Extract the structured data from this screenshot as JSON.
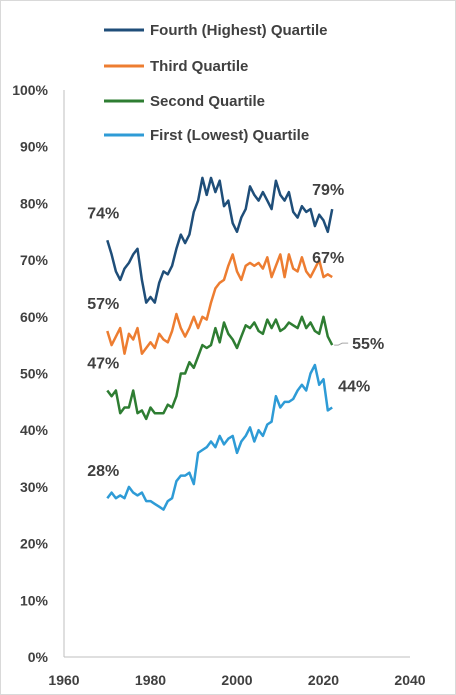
{
  "chart_data": {
    "type": "line",
    "title": "",
    "xlabel": "",
    "ylabel": "",
    "xlim": [
      1960,
      2040
    ],
    "ylim": [
      0,
      1.0
    ],
    "x_ticks": [
      "1960",
      "1980",
      "2000",
      "2020",
      "2040"
    ],
    "y_ticks": [
      "0%",
      "10%",
      "20%",
      "30%",
      "40%",
      "50%",
      "60%",
      "70%",
      "80%",
      "90%",
      "100%"
    ],
    "grid": false,
    "legend_position": "top",
    "colors": {
      "fourth": "#1f4e79",
      "third": "#ed7d31",
      "second": "#2e7d32",
      "first": "#2e9bd6",
      "axis": "#bfbfbf",
      "text": "#404040"
    },
    "series": [
      {
        "name": "Fourth (Highest) Quartile",
        "color": "#1f4e79",
        "start_label": "74%",
        "end_label": "79%",
        "values": [
          [
            1970,
            0.735
          ],
          [
            1971,
            0.71
          ],
          [
            1972,
            0.68
          ],
          [
            1973,
            0.665
          ],
          [
            1974,
            0.685
          ],
          [
            1975,
            0.695
          ],
          [
            1976,
            0.71
          ],
          [
            1977,
            0.72
          ],
          [
            1978,
            0.665
          ],
          [
            1979,
            0.625
          ],
          [
            1980,
            0.635
          ],
          [
            1981,
            0.625
          ],
          [
            1982,
            0.66
          ],
          [
            1983,
            0.68
          ],
          [
            1984,
            0.675
          ],
          [
            1985,
            0.69
          ],
          [
            1986,
            0.72
          ],
          [
            1987,
            0.745
          ],
          [
            1988,
            0.73
          ],
          [
            1989,
            0.745
          ],
          [
            1990,
            0.785
          ],
          [
            1991,
            0.805
          ],
          [
            1992,
            0.845
          ],
          [
            1993,
            0.815
          ],
          [
            1994,
            0.845
          ],
          [
            1995,
            0.82
          ],
          [
            1996,
            0.84
          ],
          [
            1997,
            0.795
          ],
          [
            1998,
            0.805
          ],
          [
            1999,
            0.765
          ],
          [
            2000,
            0.75
          ],
          [
            2001,
            0.775
          ],
          [
            2002,
            0.79
          ],
          [
            2003,
            0.83
          ],
          [
            2004,
            0.815
          ],
          [
            2005,
            0.805
          ],
          [
            2006,
            0.82
          ],
          [
            2007,
            0.805
          ],
          [
            2008,
            0.79
          ],
          [
            2009,
            0.84
          ],
          [
            2010,
            0.815
          ],
          [
            2011,
            0.805
          ],
          [
            2012,
            0.82
          ],
          [
            2013,
            0.785
          ],
          [
            2014,
            0.775
          ],
          [
            2015,
            0.795
          ],
          [
            2016,
            0.785
          ],
          [
            2017,
            0.79
          ],
          [
            2018,
            0.76
          ],
          [
            2019,
            0.78
          ],
          [
            2020,
            0.77
          ],
          [
            2021,
            0.75
          ],
          [
            2022,
            0.79
          ]
        ]
      },
      {
        "name": "Third Quartile",
        "color": "#ed7d31",
        "start_label": "57%",
        "end_label": "67%",
        "values": [
          [
            1970,
            0.575
          ],
          [
            1971,
            0.55
          ],
          [
            1972,
            0.565
          ],
          [
            1973,
            0.58
          ],
          [
            1974,
            0.535
          ],
          [
            1975,
            0.57
          ],
          [
            1976,
            0.56
          ],
          [
            1977,
            0.58
          ],
          [
            1978,
            0.535
          ],
          [
            1979,
            0.545
          ],
          [
            1980,
            0.555
          ],
          [
            1981,
            0.545
          ],
          [
            1982,
            0.57
          ],
          [
            1983,
            0.56
          ],
          [
            1984,
            0.555
          ],
          [
            1985,
            0.575
          ],
          [
            1986,
            0.605
          ],
          [
            1987,
            0.58
          ],
          [
            1988,
            0.565
          ],
          [
            1989,
            0.58
          ],
          [
            1990,
            0.6
          ],
          [
            1991,
            0.58
          ],
          [
            1992,
            0.6
          ],
          [
            1993,
            0.595
          ],
          [
            1994,
            0.625
          ],
          [
            1995,
            0.65
          ],
          [
            1996,
            0.66
          ],
          [
            1997,
            0.665
          ],
          [
            1998,
            0.69
          ],
          [
            1999,
            0.71
          ],
          [
            2000,
            0.68
          ],
          [
            2001,
            0.665
          ],
          [
            2002,
            0.69
          ],
          [
            2003,
            0.695
          ],
          [
            2004,
            0.69
          ],
          [
            2005,
            0.695
          ],
          [
            2006,
            0.685
          ],
          [
            2007,
            0.705
          ],
          [
            2008,
            0.67
          ],
          [
            2009,
            0.69
          ],
          [
            2010,
            0.71
          ],
          [
            2011,
            0.67
          ],
          [
            2012,
            0.71
          ],
          [
            2013,
            0.685
          ],
          [
            2014,
            0.68
          ],
          [
            2015,
            0.705
          ],
          [
            2016,
            0.68
          ],
          [
            2017,
            0.67
          ],
          [
            2018,
            0.685
          ],
          [
            2019,
            0.7
          ],
          [
            2020,
            0.67
          ],
          [
            2021,
            0.675
          ],
          [
            2022,
            0.67
          ]
        ]
      },
      {
        "name": "Second Quartile",
        "color": "#2e7d32",
        "start_label": "47%",
        "end_label": "55%",
        "values": [
          [
            1970,
            0.47
          ],
          [
            1971,
            0.46
          ],
          [
            1972,
            0.47
          ],
          [
            1973,
            0.43
          ],
          [
            1974,
            0.44
          ],
          [
            1975,
            0.44
          ],
          [
            1976,
            0.47
          ],
          [
            1977,
            0.43
          ],
          [
            1978,
            0.435
          ],
          [
            1979,
            0.42
          ],
          [
            1980,
            0.44
          ],
          [
            1981,
            0.43
          ],
          [
            1982,
            0.43
          ],
          [
            1983,
            0.43
          ],
          [
            1984,
            0.445
          ],
          [
            1985,
            0.44
          ],
          [
            1986,
            0.46
          ],
          [
            1987,
            0.5
          ],
          [
            1988,
            0.5
          ],
          [
            1989,
            0.52
          ],
          [
            1990,
            0.51
          ],
          [
            1991,
            0.53
          ],
          [
            1992,
            0.55
          ],
          [
            1993,
            0.545
          ],
          [
            1994,
            0.55
          ],
          [
            1995,
            0.58
          ],
          [
            1996,
            0.555
          ],
          [
            1997,
            0.59
          ],
          [
            1998,
            0.57
          ],
          [
            1999,
            0.56
          ],
          [
            2000,
            0.545
          ],
          [
            2001,
            0.565
          ],
          [
            2002,
            0.585
          ],
          [
            2003,
            0.58
          ],
          [
            2004,
            0.59
          ],
          [
            2005,
            0.575
          ],
          [
            2006,
            0.57
          ],
          [
            2007,
            0.595
          ],
          [
            2008,
            0.58
          ],
          [
            2009,
            0.595
          ],
          [
            2010,
            0.575
          ],
          [
            2011,
            0.58
          ],
          [
            2012,
            0.59
          ],
          [
            2013,
            0.585
          ],
          [
            2014,
            0.58
          ],
          [
            2015,
            0.6
          ],
          [
            2016,
            0.58
          ],
          [
            2017,
            0.59
          ],
          [
            2018,
            0.575
          ],
          [
            2019,
            0.57
          ],
          [
            2020,
            0.6
          ],
          [
            2021,
            0.565
          ],
          [
            2022,
            0.55
          ]
        ]
      },
      {
        "name": "First (Lowest) Quartile",
        "color": "#2e9bd6",
        "start_label": "28%",
        "end_label": "44%",
        "values": [
          [
            1970,
            0.28
          ],
          [
            1971,
            0.29
          ],
          [
            1972,
            0.28
          ],
          [
            1973,
            0.285
          ],
          [
            1974,
            0.28
          ],
          [
            1975,
            0.3
          ],
          [
            1976,
            0.29
          ],
          [
            1977,
            0.285
          ],
          [
            1978,
            0.29
          ],
          [
            1979,
            0.275
          ],
          [
            1980,
            0.275
          ],
          [
            1981,
            0.27
          ],
          [
            1982,
            0.265
          ],
          [
            1983,
            0.26
          ],
          [
            1984,
            0.275
          ],
          [
            1985,
            0.28
          ],
          [
            1986,
            0.31
          ],
          [
            1987,
            0.32
          ],
          [
            1988,
            0.32
          ],
          [
            1989,
            0.325
          ],
          [
            1990,
            0.305
          ],
          [
            1991,
            0.36
          ],
          [
            1992,
            0.365
          ],
          [
            1993,
            0.37
          ],
          [
            1994,
            0.38
          ],
          [
            1995,
            0.37
          ],
          [
            1996,
            0.39
          ],
          [
            1997,
            0.375
          ],
          [
            1998,
            0.385
          ],
          [
            1999,
            0.39
          ],
          [
            2000,
            0.36
          ],
          [
            2001,
            0.38
          ],
          [
            2002,
            0.39
          ],
          [
            2003,
            0.405
          ],
          [
            2004,
            0.38
          ],
          [
            2005,
            0.4
          ],
          [
            2006,
            0.39
          ],
          [
            2007,
            0.41
          ],
          [
            2008,
            0.415
          ],
          [
            2009,
            0.46
          ],
          [
            2010,
            0.44
          ],
          [
            2011,
            0.45
          ],
          [
            2012,
            0.45
          ],
          [
            2013,
            0.455
          ],
          [
            2014,
            0.47
          ],
          [
            2015,
            0.48
          ],
          [
            2016,
            0.47
          ],
          [
            2017,
            0.5
          ],
          [
            2018,
            0.515
          ],
          [
            2019,
            0.48
          ],
          [
            2020,
            0.49
          ],
          [
            2021,
            0.435
          ],
          [
            2022,
            0.44
          ]
        ]
      }
    ]
  }
}
